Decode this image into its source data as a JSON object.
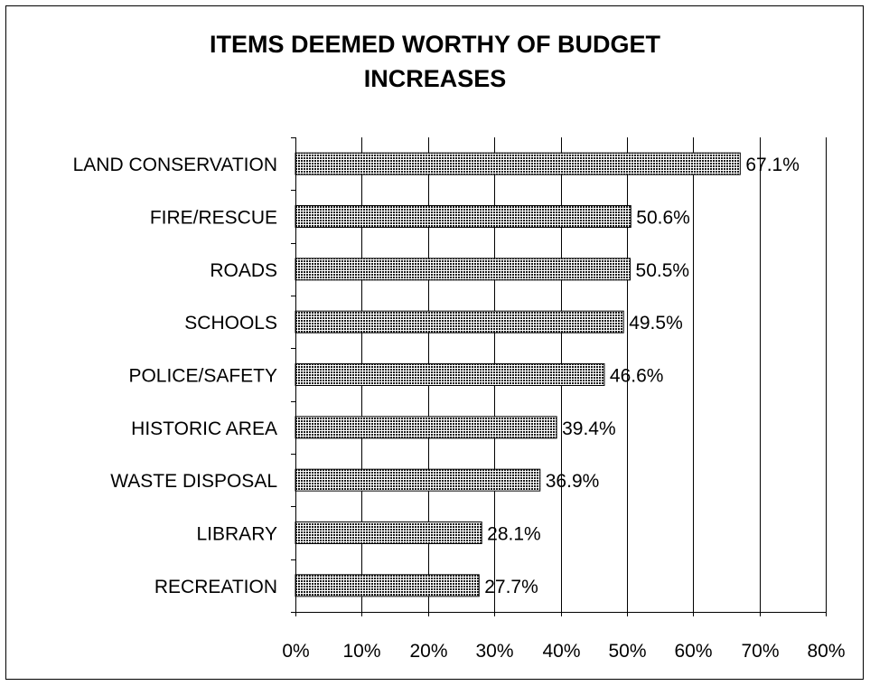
{
  "chart_data": {
    "type": "bar",
    "orientation": "horizontal",
    "title": "ITEMS DEEMED WORTHY OF BUDGET INCREASES",
    "title_lines": [
      "ITEMS DEEMED WORTHY OF BUDGET",
      "INCREASES"
    ],
    "categories": [
      "LAND CONSERVATION",
      "FIRE/RESCUE",
      "ROADS",
      "SCHOOLS",
      "POLICE/SAFETY",
      "HISTORIC AREA",
      "WASTE DISPOSAL",
      "LIBRARY",
      "RECREATION"
    ],
    "values": [
      67.1,
      50.6,
      50.5,
      49.5,
      46.6,
      39.4,
      36.9,
      28.1,
      27.7
    ],
    "data_labels": [
      "67.1%",
      "50.6%",
      "50.5%",
      "49.5%",
      "46.6%",
      "39.4%",
      "36.9%",
      "28.1%",
      "27.7%"
    ],
    "xlim": [
      0,
      80
    ],
    "x_ticks": [
      0,
      10,
      20,
      30,
      40,
      50,
      60,
      70,
      80
    ],
    "x_tick_labels": [
      "0%",
      "10%",
      "20%",
      "30%",
      "40%",
      "50%",
      "60%",
      "70%",
      "80%"
    ],
    "grid": "vertical",
    "legend": "none",
    "bar_fill": "#3a3a3a",
    "grid_color": "#000000"
  }
}
